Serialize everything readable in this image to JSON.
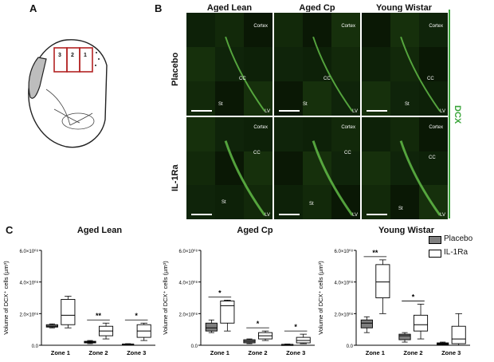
{
  "panels": {
    "a": "A",
    "b": "B",
    "c": "C"
  },
  "schematic": {
    "zones": [
      "3",
      "2",
      "1"
    ]
  },
  "micrographs": {
    "columns": [
      "Aged Lean",
      "Aged Cp",
      "Young Wistar"
    ],
    "rows": [
      "Placebo",
      "IL-1Ra"
    ],
    "stain": "DCX",
    "labels": {
      "cortex": "Cortex",
      "cc": "CC",
      "st": "St",
      "lv": "LV"
    }
  },
  "colors": {
    "dcx_green": "#3aa53a",
    "placebo_fill": "#7f7f7f",
    "il1ra_fill": "#ffffff",
    "tissue": "#0b1a06"
  },
  "chart_data": [
    {
      "type": "box",
      "title": "Aged Lean",
      "ylabel": "Volume of DCX⁺ cells (µm³)",
      "yticks": [
        "0.0",
        "2.0×10⁰⁸",
        "4.0×10⁰⁸",
        "6.0×10⁰⁸"
      ],
      "ylim": [
        0,
        6
      ],
      "categories": [
        "Zone 1",
        "Zone 2",
        "Zone 3"
      ],
      "series": [
        {
          "name": "Placebo",
          "boxes": [
            [
              1.1,
              1.15,
              1.2,
              1.3,
              1.35
            ],
            [
              0.1,
              0.15,
              0.2,
              0.25,
              0.3
            ],
            [
              0.0,
              0.02,
              0.05,
              0.08,
              0.1
            ]
          ]
        },
        {
          "name": "IL-1Ra",
          "boxes": [
            [
              1.1,
              1.3,
              1.9,
              2.9,
              3.1
            ],
            [
              0.4,
              0.6,
              0.9,
              1.2,
              1.4
            ],
            [
              0.3,
              0.5,
              0.9,
              1.3,
              1.4
            ]
          ]
        }
      ],
      "significance": [
        [
          "Zone 2",
          "**"
        ],
        [
          "Zone 3",
          "*"
        ]
      ]
    },
    {
      "type": "box",
      "title": "Aged Cp",
      "ylabel": "Volume of DCX⁺ cells (µm³)",
      "yticks": [
        "0.0",
        "2.0×10⁰⁸",
        "4.0×10⁰⁸",
        "6.0×10⁰⁸"
      ],
      "ylim": [
        0,
        6
      ],
      "categories": [
        "Zone 1",
        "Zone 2",
        "Zone 3"
      ],
      "series": [
        {
          "name": "Placebo",
          "boxes": [
            [
              0.8,
              0.9,
              1.1,
              1.4,
              1.6
            ],
            [
              0.1,
              0.15,
              0.25,
              0.35,
              0.4
            ],
            [
              0.0,
              0.02,
              0.04,
              0.06,
              0.08
            ]
          ]
        },
        {
          "name": "IL-1Ra",
          "boxes": [
            [
              0.9,
              1.4,
              2.5,
              2.8,
              2.85
            ],
            [
              0.3,
              0.4,
              0.6,
              0.8,
              0.9
            ],
            [
              0.1,
              0.15,
              0.3,
              0.5,
              0.7
            ]
          ]
        }
      ],
      "significance": [
        [
          "Zone 1",
          "*"
        ],
        [
          "Zone 2",
          "*"
        ],
        [
          "Zone 3",
          "*"
        ]
      ]
    },
    {
      "type": "box",
      "title": "Young Wistar",
      "ylabel": "Volume of DCX⁺ cells (µm³)",
      "yticks": [
        "0.0",
        "2.0×10⁰⁸",
        "4.0×10⁰⁸",
        "6.0×10⁰⁸"
      ],
      "ylim": [
        0,
        6
      ],
      "categories": [
        "Zone 1",
        "Zone 2",
        "Zone 3"
      ],
      "series": [
        {
          "name": "Placebo",
          "boxes": [
            [
              0.8,
              1.1,
              1.4,
              1.6,
              1.8
            ],
            [
              0.2,
              0.35,
              0.6,
              0.7,
              0.8
            ],
            [
              0.0,
              0.05,
              0.1,
              0.15,
              0.2
            ]
          ]
        },
        {
          "name": "IL-1Ra",
          "boxes": [
            [
              2.0,
              3.0,
              4.0,
              5.1,
              5.4
            ],
            [
              0.4,
              0.9,
              1.3,
              1.9,
              2.6
            ],
            [
              0.0,
              0.1,
              0.4,
              1.2,
              2.0
            ]
          ]
        }
      ],
      "significance": [
        [
          "Zone 1",
          "**"
        ],
        [
          "Zone 2",
          "*"
        ]
      ]
    }
  ],
  "legend": {
    "items": [
      "Placebo",
      "IL-1Ra"
    ]
  }
}
